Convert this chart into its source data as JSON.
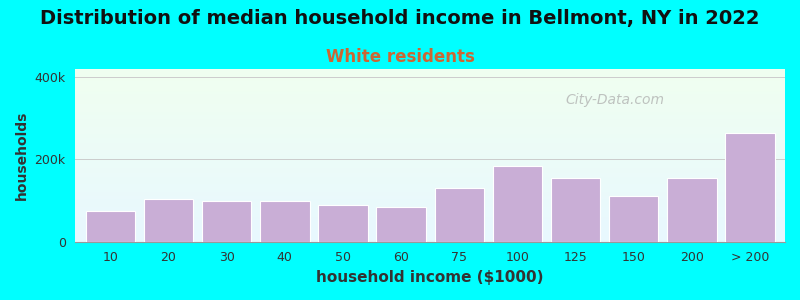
{
  "title": "Distribution of median household income in Bellmont, NY in 2022",
  "subtitle": "White residents",
  "xlabel": "household income ($1000)",
  "ylabel": "households",
  "background_color": "#00FFFF",
  "bar_color": "#c9aed6",
  "bar_edge_color": "#ffffff",
  "categories": [
    "10",
    "20",
    "30",
    "40",
    "50",
    "60",
    "75",
    "100",
    "125",
    "150",
    "200",
    "> 200"
  ],
  "values": [
    75000,
    105000,
    100000,
    100000,
    90000,
    85000,
    130000,
    185000,
    155000,
    110000,
    155000,
    265000
  ],
  "ylim": [
    0,
    420000
  ],
  "ytick_labels": [
    "0",
    "200k",
    "400k"
  ],
  "ytick_values": [
    0,
    200000,
    400000
  ],
  "title_fontsize": 14,
  "subtitle_fontsize": 12,
  "subtitle_color": "#cc6633",
  "watermark": "City-Data.com"
}
